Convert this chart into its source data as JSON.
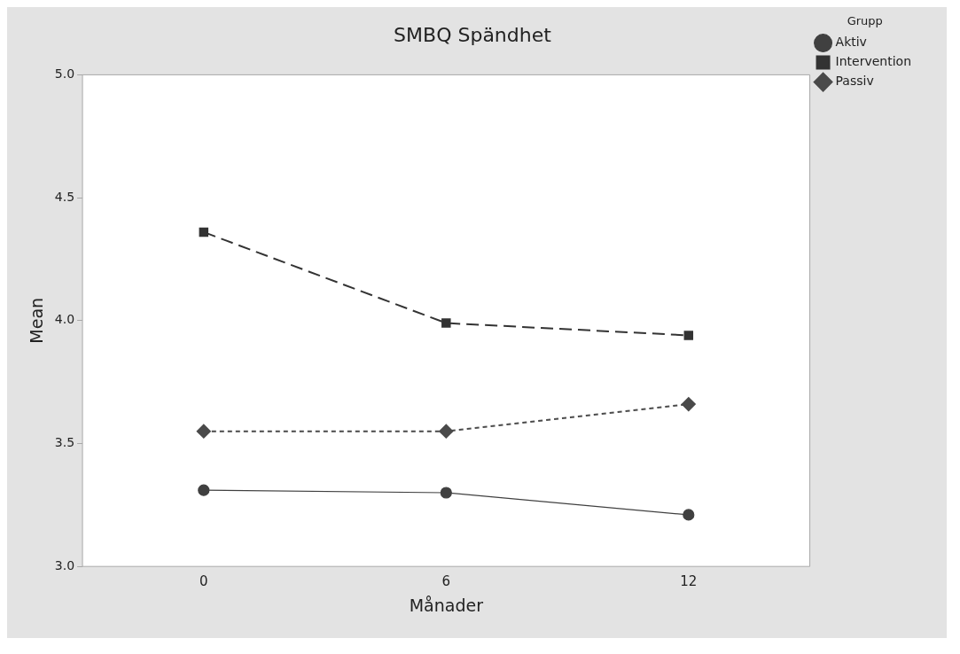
{
  "chart_data": {
    "type": "line",
    "title": "SMBQ Spändhet",
    "xlabel": "Månader",
    "ylabel": "Mean",
    "legend_title": "Grupp",
    "x": [
      0,
      6,
      12
    ],
    "xlim": [
      -3,
      15
    ],
    "xticks": [
      0,
      6,
      12
    ],
    "ylim": [
      3.0,
      5.0
    ],
    "yticks": [
      {
        "value": 3,
        "label": "3.0"
      },
      {
        "value": 3.5,
        "label": "3.5"
      },
      {
        "value": 4,
        "label": "4.0"
      },
      {
        "value": 4.5,
        "label": "4.5"
      },
      {
        "value": 5,
        "label": "5.0"
      }
    ],
    "grid": false,
    "legend": "right",
    "series": [
      {
        "name": "Aktiv",
        "color": "#404040",
        "values": [
          3.31,
          3.3,
          3.21
        ],
        "marker": "circle",
        "line_style": "solid"
      },
      {
        "name": "Intervention",
        "color": "#333333",
        "values": [
          4.36,
          3.99,
          3.94
        ],
        "marker": "square",
        "line_style": "dashed"
      },
      {
        "name": "Passiv",
        "color": "#4a4a4a",
        "values": [
          3.55,
          3.55,
          3.66
        ],
        "marker": "diamond",
        "line_style": "dotted"
      }
    ]
  }
}
